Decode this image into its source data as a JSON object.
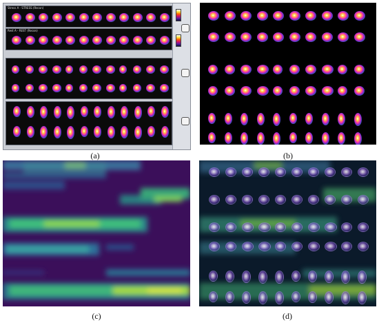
{
  "captions": {
    "a": "(a)",
    "b": "(b)",
    "c": "(c)",
    "d": "(d)"
  },
  "panel_a": {
    "strip_titles": [
      "Stress A - STRESS (Recon)",
      "Rest A - REST (Recon)"
    ],
    "section_rows": 3,
    "slices_per_row": 12
  },
  "panel_b": {
    "rows": 6,
    "slices_per_row": 10
  },
  "panel_d": {
    "rows": 6,
    "slices_per_row": 10
  },
  "colors": {
    "hot_core": "#ffffff",
    "hot_high": "#ffd23a",
    "hot_mid": "#ff3aa0",
    "hot_low": "#6a2bd0",
    "cold": "#1d8a8a",
    "heat_low": "#3b0f5a",
    "heat_mid": "#2f6fa0",
    "heat_high": "#35b87a",
    "heat_peak": "#c6e33a"
  }
}
